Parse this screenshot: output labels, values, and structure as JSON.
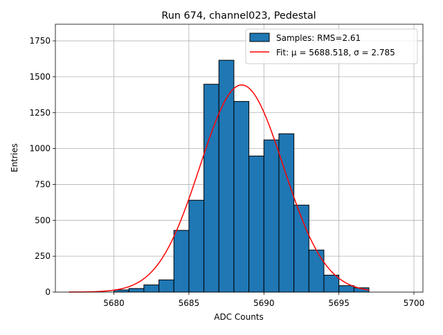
{
  "chart_data": {
    "type": "histogram",
    "title": "Run 674, channel023, Pedestal",
    "xlabel": "ADC Counts",
    "ylabel": "Entries",
    "xlim": [
      5676.1,
      5700.6
    ],
    "ylim": [
      0,
      1866
    ],
    "x_ticks": [
      5680,
      5685,
      5690,
      5695,
      5700
    ],
    "x_tick_labels": [
      "5680",
      "5685",
      "5690",
      "5695",
      "5700"
    ],
    "y_ticks": [
      0,
      250,
      500,
      750,
      1000,
      1250,
      1500,
      1750
    ],
    "y_tick_labels": [
      "0",
      "250",
      "500",
      "750",
      "1000",
      "1250",
      "1500",
      "1750"
    ],
    "grid": true,
    "legend_position": "top-right",
    "legend": {
      "bars_label": "Samples: RMS=2.61",
      "fit_label": "Fit: μ = 5688.518, σ = 2.785"
    },
    "bins": [
      {
        "start": 5680,
        "end": 5681,
        "count": 15
      },
      {
        "start": 5681,
        "end": 5682,
        "count": 25
      },
      {
        "start": 5682,
        "end": 5683,
        "count": 50
      },
      {
        "start": 5683,
        "end": 5684,
        "count": 85
      },
      {
        "start": 5684,
        "end": 5685,
        "count": 430
      },
      {
        "start": 5685,
        "end": 5686,
        "count": 640
      },
      {
        "start": 5686,
        "end": 5687,
        "count": 1448
      },
      {
        "start": 5687,
        "end": 5688,
        "count": 1615
      },
      {
        "start": 5688,
        "end": 5689,
        "count": 1328
      },
      {
        "start": 5689,
        "end": 5690,
        "count": 948
      },
      {
        "start": 5690,
        "end": 5691,
        "count": 1060
      },
      {
        "start": 5691,
        "end": 5692,
        "count": 1103
      },
      {
        "start": 5692,
        "end": 5693,
        "count": 606
      },
      {
        "start": 5693,
        "end": 5694,
        "count": 293
      },
      {
        "start": 5694,
        "end": 5695,
        "count": 118
      },
      {
        "start": 5695,
        "end": 5696,
        "count": 45
      },
      {
        "start": 5696,
        "end": 5697,
        "count": 30
      }
    ],
    "fit": {
      "mu": 5688.518,
      "sigma": 2.785,
      "amplitude": 1443,
      "x_range": [
        5677,
        5697
      ]
    },
    "colors": {
      "bar_fill": "#1f77b4",
      "bar_edge": "#000000",
      "fit_line": "#ff0000",
      "grid": "#b0b0b0"
    }
  }
}
